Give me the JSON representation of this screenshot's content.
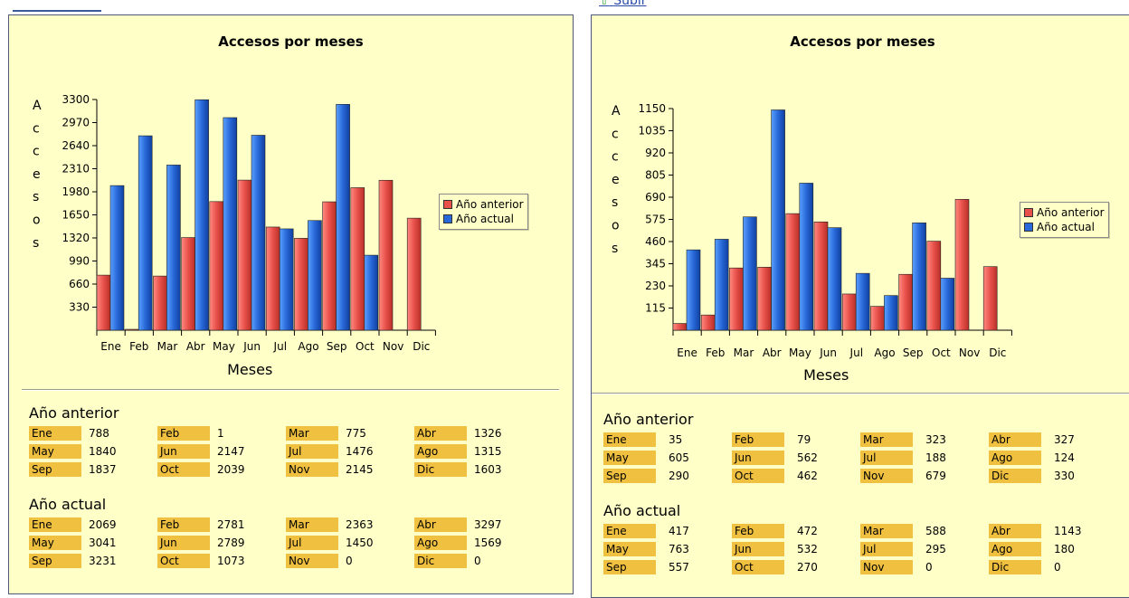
{
  "top_links": {
    "right": "Subir"
  },
  "charts": [
    {
      "title": "Accesos por meses",
      "ylabel_letters": [
        "A",
        "c",
        "c",
        "e",
        "s",
        "o",
        "s"
      ],
      "xlabel": "Meses",
      "legend": [
        "Año anterior",
        "Año actual"
      ],
      "colors": {
        "prev": "#e8504a",
        "curr": "#2868d8"
      },
      "tables": [
        {
          "title": "Año anterior",
          "rows": [
            [
              [
                "Ene",
                "788"
              ],
              [
                "Feb",
                "1"
              ],
              [
                "Mar",
                "775"
              ],
              [
                "Abr",
                "1326"
              ]
            ],
            [
              [
                "May",
                "1840"
              ],
              [
                "Jun",
                "2147"
              ],
              [
                "Jul",
                "1476"
              ],
              [
                "Ago",
                "1315"
              ]
            ],
            [
              [
                "Sep",
                "1837"
              ],
              [
                "Oct",
                "2039"
              ],
              [
                "Nov",
                "2145"
              ],
              [
                "Dic",
                "1603"
              ]
            ]
          ]
        },
        {
          "title": "Año actual",
          "rows": [
            [
              [
                "Ene",
                "2069"
              ],
              [
                "Feb",
                "2781"
              ],
              [
                "Mar",
                "2363"
              ],
              [
                "Abr",
                "3297"
              ]
            ],
            [
              [
                "May",
                "3041"
              ],
              [
                "Jun",
                "2789"
              ],
              [
                "Jul",
                "1450"
              ],
              [
                "Ago",
                "1569"
              ]
            ],
            [
              [
                "Sep",
                "3231"
              ],
              [
                "Oct",
                "1073"
              ],
              [
                "Nov",
                "0"
              ],
              [
                "Dic",
                "0"
              ]
            ]
          ]
        }
      ]
    },
    {
      "title": "Accesos por meses",
      "ylabel_letters": [
        "A",
        "c",
        "c",
        "e",
        "s",
        "o",
        "s"
      ],
      "xlabel": "Meses",
      "legend": [
        "Año anterior",
        "Año actual"
      ],
      "colors": {
        "prev": "#e8504a",
        "curr": "#2868d8"
      },
      "tables": [
        {
          "title": "Año anterior",
          "rows": [
            [
              [
                "Ene",
                "35"
              ],
              [
                "Feb",
                "79"
              ],
              [
                "Mar",
                "323"
              ],
              [
                "Abr",
                "327"
              ]
            ],
            [
              [
                "May",
                "605"
              ],
              [
                "Jun",
                "562"
              ],
              [
                "Jul",
                "188"
              ],
              [
                "Ago",
                "124"
              ]
            ],
            [
              [
                "Sep",
                "290"
              ],
              [
                "Oct",
                "462"
              ],
              [
                "Nov",
                "679"
              ],
              [
                "Dic",
                "330"
              ]
            ]
          ]
        },
        {
          "title": "Año actual",
          "rows": [
            [
              [
                "Ene",
                "417"
              ],
              [
                "Feb",
                "472"
              ],
              [
                "Mar",
                "588"
              ],
              [
                "Abr",
                "1143"
              ]
            ],
            [
              [
                "May",
                "763"
              ],
              [
                "Jun",
                "532"
              ],
              [
                "Jul",
                "295"
              ],
              [
                "Ago",
                "180"
              ]
            ],
            [
              [
                "Sep",
                "557"
              ],
              [
                "Oct",
                "270"
              ],
              [
                "Nov",
                "0"
              ],
              [
                "Dic",
                "0"
              ]
            ]
          ]
        }
      ]
    }
  ],
  "chart_data": [
    {
      "type": "bar",
      "title": "Accesos por meses",
      "xlabel": "Meses",
      "ylabel": "Accesos",
      "categories": [
        "Ene",
        "Feb",
        "Mar",
        "Abr",
        "May",
        "Jun",
        "Jul",
        "Ago",
        "Sep",
        "Oct",
        "Nov",
        "Dic"
      ],
      "series": [
        {
          "name": "Año anterior",
          "values": [
            788,
            1,
            775,
            1326,
            1840,
            2147,
            1476,
            1315,
            1837,
            2039,
            2145,
            1603
          ]
        },
        {
          "name": "Año actual",
          "values": [
            2069,
            2781,
            2363,
            3297,
            3041,
            2789,
            1450,
            1569,
            3231,
            1073,
            0,
            0
          ]
        }
      ],
      "yticks": [
        330,
        660,
        990,
        1320,
        1650,
        1980,
        2310,
        2640,
        2970,
        3300
      ],
      "ylim": [
        0,
        3300
      ],
      "legend": "right"
    },
    {
      "type": "bar",
      "title": "Accesos por meses",
      "xlabel": "Meses",
      "ylabel": "Accesos",
      "categories": [
        "Ene",
        "Feb",
        "Mar",
        "Abr",
        "May",
        "Jun",
        "Jul",
        "Ago",
        "Sep",
        "Oct",
        "Nov",
        "Dic"
      ],
      "series": [
        {
          "name": "Año anterior",
          "values": [
            35,
            79,
            323,
            327,
            605,
            562,
            188,
            124,
            290,
            462,
            679,
            330
          ]
        },
        {
          "name": "Año actual",
          "values": [
            417,
            472,
            588,
            1143,
            763,
            532,
            295,
            180,
            557,
            270,
            0,
            0
          ]
        }
      ],
      "yticks": [
        115,
        230,
        345,
        460,
        575,
        690,
        805,
        920,
        1035,
        1150
      ],
      "ylim": [
        0,
        1150
      ],
      "legend": "right"
    }
  ]
}
